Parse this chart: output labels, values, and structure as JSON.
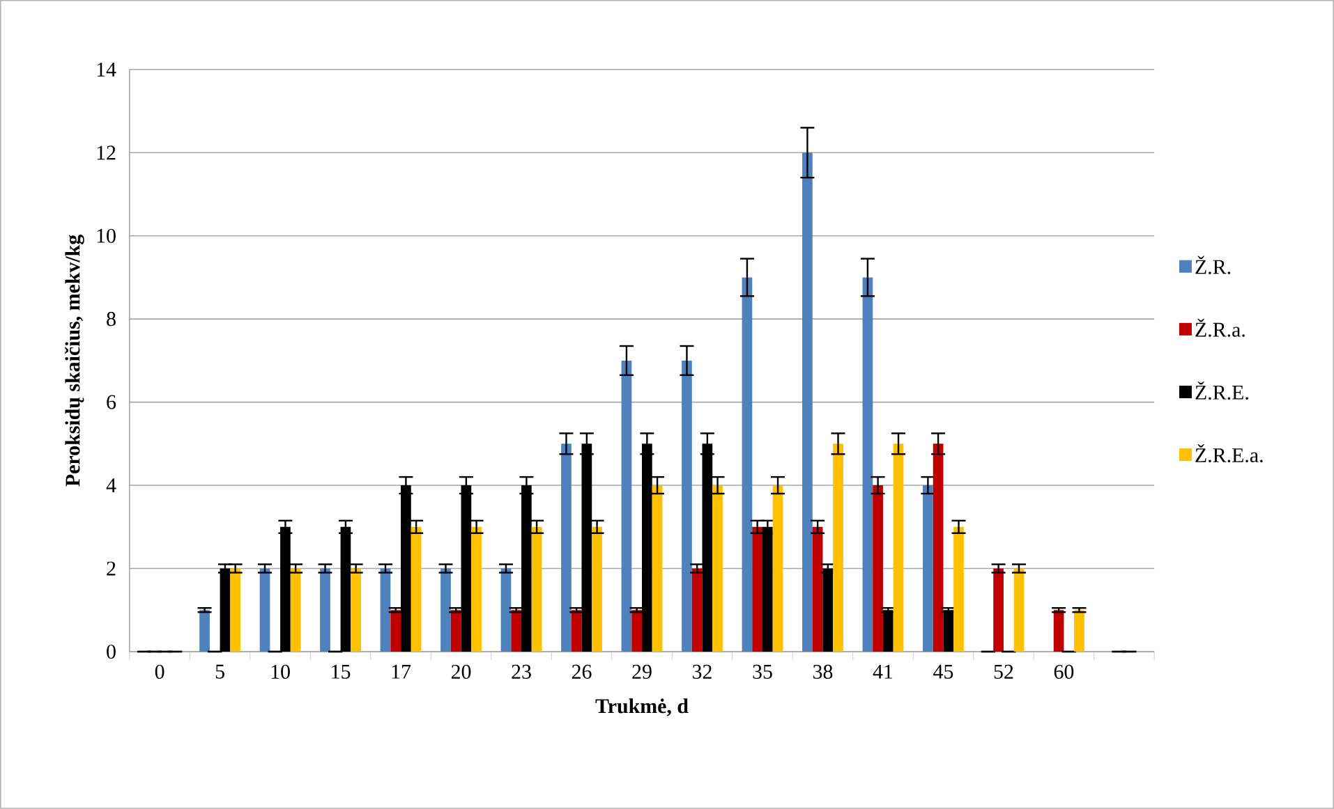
{
  "chart_data": {
    "type": "bar",
    "xlabel": "Trukmė, d",
    "ylabel": "Peroksidų skaičius, mekv/kg",
    "categories": [
      "0",
      "5",
      "10",
      "15",
      "17",
      "20",
      "23",
      "26",
      "29",
      "32",
      "35",
      "38",
      "41",
      "45",
      "52",
      "60",
      null
    ],
    "series": [
      {
        "name": "Ž.R.",
        "color": "#4f81bd",
        "values": [
          0,
          1,
          2,
          2,
          2,
          2,
          2,
          5,
          7,
          7,
          9,
          12,
          9,
          4,
          0,
          null,
          null
        ],
        "errors": [
          null,
          0.05,
          0.1,
          0.1,
          0.1,
          0.1,
          0.1,
          0.25,
          0.35,
          0.35,
          0.45,
          0.6,
          0.45,
          0.2,
          null,
          null,
          null
        ]
      },
      {
        "name": "Ž.R.a.",
        "color": "#c00000",
        "values": [
          0,
          0,
          0,
          0,
          1,
          1,
          1,
          1,
          1,
          2,
          3,
          3,
          4,
          5,
          2,
          1,
          0
        ],
        "errors": [
          null,
          null,
          null,
          null,
          0.05,
          0.05,
          0.05,
          0.05,
          0.05,
          0.1,
          0.15,
          0.15,
          0.2,
          0.25,
          0.1,
          0.05,
          null
        ]
      },
      {
        "name": "Ž.R.E.",
        "color": "#000000",
        "values": [
          0,
          2,
          3,
          3,
          4,
          4,
          4,
          5,
          5,
          5,
          3,
          2,
          1,
          1,
          0,
          0,
          0
        ],
        "errors": [
          null,
          0.1,
          0.15,
          0.15,
          0.2,
          0.2,
          0.2,
          0.25,
          0.25,
          0.25,
          0.15,
          0.1,
          0.05,
          0.05,
          null,
          null,
          null
        ]
      },
      {
        "name": "Ž.R.E.a.",
        "color": "#ffc000",
        "values": [
          0,
          2,
          2,
          2,
          3,
          3,
          3,
          3,
          4,
          4,
          4,
          5,
          5,
          3,
          2,
          1,
          null
        ],
        "errors": [
          null,
          0.1,
          0.1,
          0.1,
          0.15,
          0.15,
          0.15,
          0.15,
          0.2,
          0.2,
          0.2,
          0.25,
          0.25,
          0.15,
          0.1,
          0.05,
          null
        ]
      }
    ],
    "ylim": [
      0,
      14
    ],
    "yticks": [
      0,
      2,
      4,
      6,
      8,
      10,
      12,
      14
    ],
    "grid": "y",
    "legend": "right"
  }
}
